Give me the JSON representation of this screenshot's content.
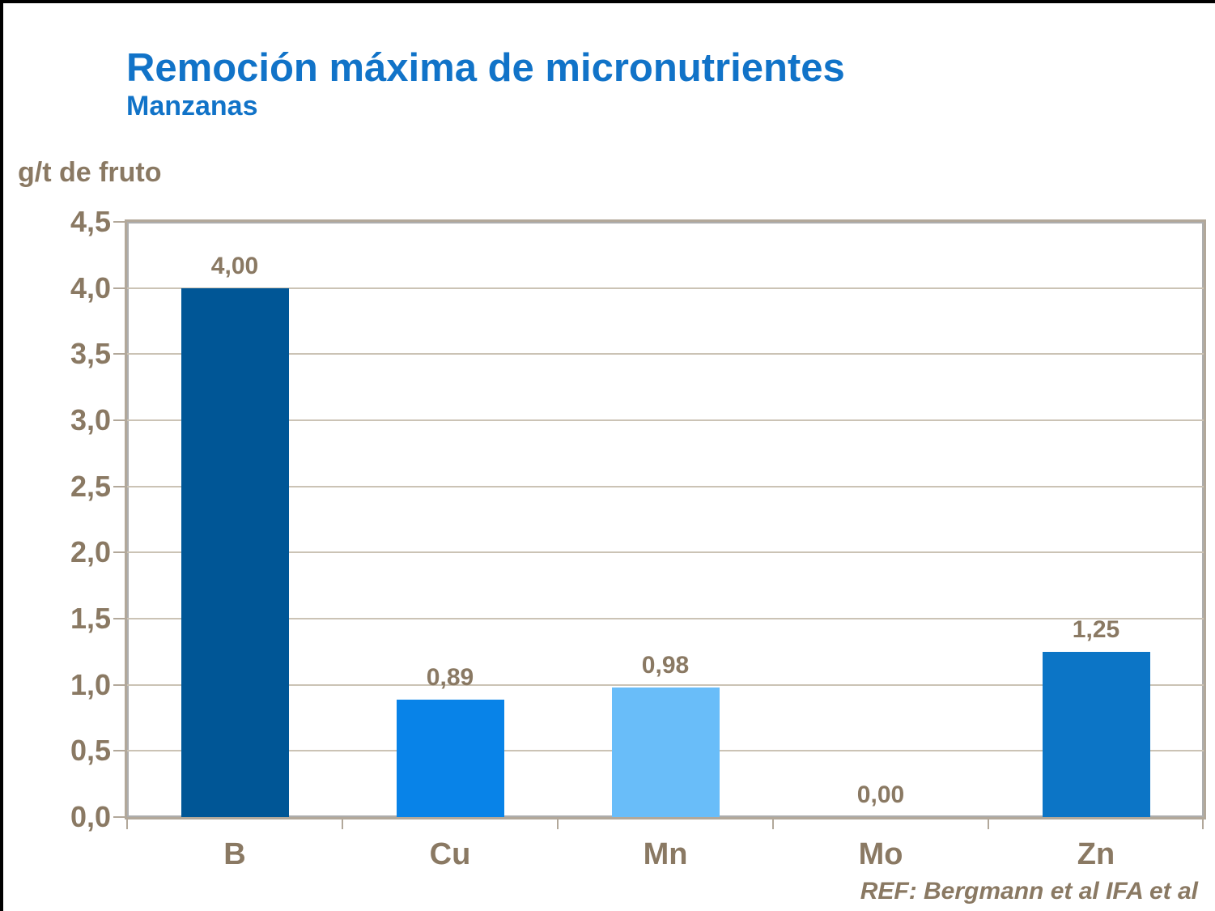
{
  "header": {
    "title": "Remoción máxima de micronutrientes",
    "subtitle": "Manzanas",
    "title_color": "#1173C8"
  },
  "chart_data": {
    "type": "bar",
    "title": "Remoción máxima de micronutrientes",
    "subtitle": "Manzanas",
    "ylabel": "g/t de fruto",
    "xlabel": "",
    "categories": [
      "B",
      "Cu",
      "Mn",
      "Mo",
      "Zn"
    ],
    "values": [
      4.0,
      0.89,
      0.98,
      0.0,
      1.25
    ],
    "value_labels": [
      "4,00",
      "0,89",
      "0,98",
      "0,00",
      "1,25"
    ],
    "bar_colors": [
      "#005696",
      "#0883E8",
      "#69BDF9",
      "#0883E8",
      "#0C75C6"
    ],
    "ylim": [
      0,
      4.5
    ],
    "ytick_step": 0.5,
    "ytick_labels": [
      "0,0",
      "0,5",
      "1,0",
      "1,5",
      "2,0",
      "2,5",
      "3,0",
      "3,5",
      "4,0",
      "4,5"
    ],
    "grid": true,
    "legend_position": "none",
    "text_color": "#8A7963",
    "grid_color": "#CBC3B5",
    "axis_color": "#B2A89A"
  },
  "footer": {
    "ref_text": "REF: Bergmann et al IFA et al"
  }
}
